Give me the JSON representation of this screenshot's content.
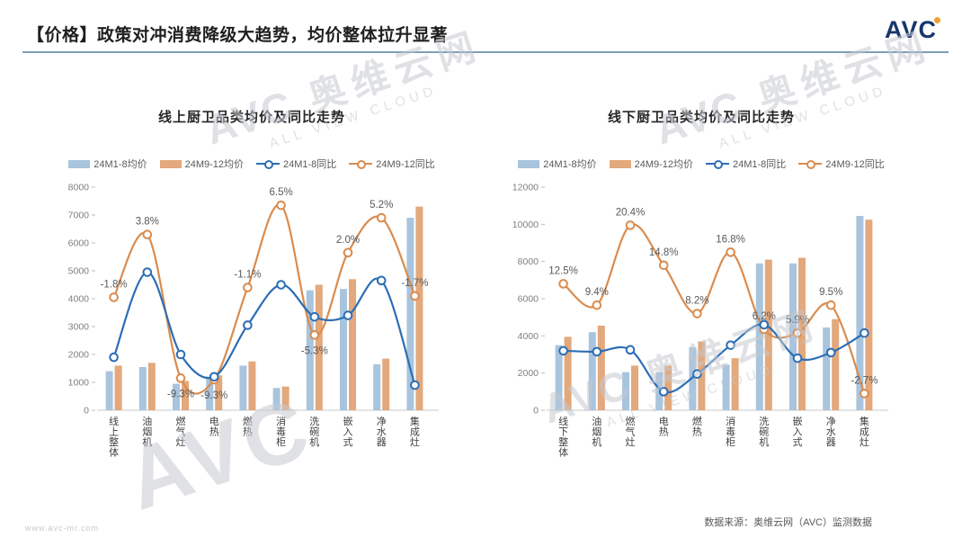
{
  "header": {
    "title": "【价格】政策对冲消费降级大趋势，均价整体拉升显著",
    "logo_text": "AVC"
  },
  "footer": {
    "site": "www.avc-mr.com",
    "source": "数据来源：奥维云网（AVC）监测数据"
  },
  "watermark": {
    "logo": "AVC",
    "brand": "奥维云网",
    "sub": "ALL VIEW CLOUD"
  },
  "colors": {
    "bar_blue": "#A9C4DD",
    "bar_orange": "#E3A87B",
    "line_blue": "#2C6EB5",
    "line_orange": "#D98C4F",
    "accent_rule": "#7E9FB6",
    "logo_navy": "#17366E",
    "logo_orange": "#F0A030",
    "axis_text": "#7F7F7F",
    "category_text": "#404040",
    "label_text": "#595959",
    "baseline": "#C9C9C9"
  },
  "legend": [
    {
      "label": "24M1-8均价",
      "type": "bar",
      "color_key": "bar_blue"
    },
    {
      "label": "24M9-12均价",
      "type": "bar",
      "color_key": "bar_orange"
    },
    {
      "label": "24M1-8同比",
      "type": "line",
      "color_key": "line_blue"
    },
    {
      "label": "24M9-12同比",
      "type": "line",
      "color_key": "line_orange"
    }
  ],
  "chart_data": [
    {
      "type": "bar+line",
      "title": "线上厨卫品类均价及同比走势",
      "categories": [
        "线上整体",
        "油烟机",
        "燃气灶",
        "电热",
        "燃热",
        "消毒柜",
        "洗碗机",
        "嵌入式",
        "净水器",
        "集成灶"
      ],
      "ylim": [
        0,
        8000
      ],
      "ytick_step": 1000,
      "grid": false,
      "legend_position": "top",
      "series": [
        {
          "name": "24M1-8均价",
          "type": "bar",
          "color_key": "bar_blue",
          "values": [
            1400,
            1550,
            950,
            1200,
            1600,
            800,
            4300,
            4350,
            1650,
            6900
          ]
        },
        {
          "name": "24M9-12均价",
          "type": "bar",
          "color_key": "bar_orange",
          "values": [
            1600,
            1700,
            1050,
            1250,
            1750,
            850,
            4500,
            4700,
            1850,
            7300
          ]
        },
        {
          "name": "24M1-8同比",
          "type": "line",
          "color_key": "line_blue",
          "plot_values_primary_axis": [
            1900,
            4950,
            2000,
            1200,
            3050,
            4500,
            3350,
            3400,
            4650,
            900
          ]
        },
        {
          "name": "24M9-12同比",
          "type": "line",
          "color_key": "line_orange",
          "plot_values_primary_axis": [
            4050,
            6300,
            1150,
            1100,
            4400,
            7350,
            2700,
            5650,
            6900,
            4100
          ],
          "point_labels": [
            "-1.8%",
            "3.8%",
            "-9.3%",
            "-9.3%",
            "-1.1%",
            "6.5%",
            "-5.3%",
            "2.0%",
            "5.2%",
            "-1.7%"
          ],
          "label_side": [
            "up",
            "up",
            "down",
            "down",
            "up",
            "up",
            "down",
            "up",
            "up",
            "up"
          ]
        }
      ]
    },
    {
      "type": "bar+line",
      "title": "线下厨卫品类均价及同比走势",
      "categories": [
        "线下整体",
        "油烟机",
        "燃气灶",
        "电热",
        "燃热",
        "消毒柜",
        "洗碗机",
        "嵌入式",
        "净水器",
        "集成灶"
      ],
      "ylim": [
        0,
        12000
      ],
      "ytick_step": 2000,
      "grid": false,
      "legend_position": "top",
      "series": [
        {
          "name": "24M1-8均价",
          "type": "bar",
          "color_key": "bar_blue",
          "values": [
            3500,
            4200,
            2050,
            2050,
            3400,
            2450,
            7900,
            7900,
            4450,
            10450
          ]
        },
        {
          "name": "24M9-12均价",
          "type": "bar",
          "color_key": "bar_orange",
          "values": [
            3950,
            4550,
            2400,
            2400,
            3700,
            2800,
            8100,
            8200,
            4900,
            10250
          ]
        },
        {
          "name": "24M1-8同比",
          "type": "line",
          "color_key": "line_blue",
          "plot_values_primary_axis": [
            3200,
            3150,
            3250,
            1000,
            1950,
            3500,
            4600,
            2800,
            3100,
            4150
          ]
        },
        {
          "name": "24M9-12同比",
          "type": "line",
          "color_key": "line_orange",
          "plot_values_primary_axis": [
            6800,
            5650,
            9950,
            7800,
            5200,
            8500,
            4350,
            4150,
            5650,
            900
          ],
          "point_labels": [
            "12.5%",
            "9.4%",
            "20.4%",
            "14.8%",
            "8.2%",
            "16.8%",
            "6.2%",
            "5.9%",
            "9.5%",
            "-2.7%"
          ],
          "label_side": [
            "up",
            "up",
            "up",
            "up",
            "up",
            "up",
            "up",
            "up",
            "up",
            "up"
          ]
        }
      ]
    }
  ]
}
